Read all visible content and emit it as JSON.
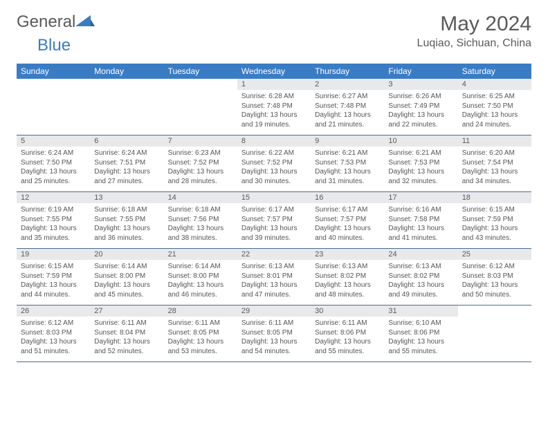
{
  "logo": {
    "part1": "General",
    "part2": "Blue"
  },
  "title": "May 2024",
  "subtitle": "Luqiao, Sichuan, China",
  "colors": {
    "header_bg": "#3a7cc4",
    "daynum_bg": "#e8e9eb",
    "text": "#5a5a5a",
    "rule": "#4a6a8a"
  },
  "day_labels": [
    "Sunday",
    "Monday",
    "Tuesday",
    "Wednesday",
    "Thursday",
    "Friday",
    "Saturday"
  ],
  "weeks": [
    {
      "nums": [
        "",
        "",
        "",
        "1",
        "2",
        "3",
        "4"
      ],
      "cells": [
        null,
        null,
        null,
        {
          "sr": "Sunrise: 6:28 AM",
          "ss": "Sunset: 7:48 PM",
          "d1": "Daylight: 13 hours",
          "d2": "and 19 minutes."
        },
        {
          "sr": "Sunrise: 6:27 AM",
          "ss": "Sunset: 7:48 PM",
          "d1": "Daylight: 13 hours",
          "d2": "and 21 minutes."
        },
        {
          "sr": "Sunrise: 6:26 AM",
          "ss": "Sunset: 7:49 PM",
          "d1": "Daylight: 13 hours",
          "d2": "and 22 minutes."
        },
        {
          "sr": "Sunrise: 6:25 AM",
          "ss": "Sunset: 7:50 PM",
          "d1": "Daylight: 13 hours",
          "d2": "and 24 minutes."
        }
      ]
    },
    {
      "nums": [
        "5",
        "6",
        "7",
        "8",
        "9",
        "10",
        "11"
      ],
      "cells": [
        {
          "sr": "Sunrise: 6:24 AM",
          "ss": "Sunset: 7:50 PM",
          "d1": "Daylight: 13 hours",
          "d2": "and 25 minutes."
        },
        {
          "sr": "Sunrise: 6:24 AM",
          "ss": "Sunset: 7:51 PM",
          "d1": "Daylight: 13 hours",
          "d2": "and 27 minutes."
        },
        {
          "sr": "Sunrise: 6:23 AM",
          "ss": "Sunset: 7:52 PM",
          "d1": "Daylight: 13 hours",
          "d2": "and 28 minutes."
        },
        {
          "sr": "Sunrise: 6:22 AM",
          "ss": "Sunset: 7:52 PM",
          "d1": "Daylight: 13 hours",
          "d2": "and 30 minutes."
        },
        {
          "sr": "Sunrise: 6:21 AM",
          "ss": "Sunset: 7:53 PM",
          "d1": "Daylight: 13 hours",
          "d2": "and 31 minutes."
        },
        {
          "sr": "Sunrise: 6:21 AM",
          "ss": "Sunset: 7:53 PM",
          "d1": "Daylight: 13 hours",
          "d2": "and 32 minutes."
        },
        {
          "sr": "Sunrise: 6:20 AM",
          "ss": "Sunset: 7:54 PM",
          "d1": "Daylight: 13 hours",
          "d2": "and 34 minutes."
        }
      ]
    },
    {
      "nums": [
        "12",
        "13",
        "14",
        "15",
        "16",
        "17",
        "18"
      ],
      "cells": [
        {
          "sr": "Sunrise: 6:19 AM",
          "ss": "Sunset: 7:55 PM",
          "d1": "Daylight: 13 hours",
          "d2": "and 35 minutes."
        },
        {
          "sr": "Sunrise: 6:18 AM",
          "ss": "Sunset: 7:55 PM",
          "d1": "Daylight: 13 hours",
          "d2": "and 36 minutes."
        },
        {
          "sr": "Sunrise: 6:18 AM",
          "ss": "Sunset: 7:56 PM",
          "d1": "Daylight: 13 hours",
          "d2": "and 38 minutes."
        },
        {
          "sr": "Sunrise: 6:17 AM",
          "ss": "Sunset: 7:57 PM",
          "d1": "Daylight: 13 hours",
          "d2": "and 39 minutes."
        },
        {
          "sr": "Sunrise: 6:17 AM",
          "ss": "Sunset: 7:57 PM",
          "d1": "Daylight: 13 hours",
          "d2": "and 40 minutes."
        },
        {
          "sr": "Sunrise: 6:16 AM",
          "ss": "Sunset: 7:58 PM",
          "d1": "Daylight: 13 hours",
          "d2": "and 41 minutes."
        },
        {
          "sr": "Sunrise: 6:15 AM",
          "ss": "Sunset: 7:59 PM",
          "d1": "Daylight: 13 hours",
          "d2": "and 43 minutes."
        }
      ]
    },
    {
      "nums": [
        "19",
        "20",
        "21",
        "22",
        "23",
        "24",
        "25"
      ],
      "cells": [
        {
          "sr": "Sunrise: 6:15 AM",
          "ss": "Sunset: 7:59 PM",
          "d1": "Daylight: 13 hours",
          "d2": "and 44 minutes."
        },
        {
          "sr": "Sunrise: 6:14 AM",
          "ss": "Sunset: 8:00 PM",
          "d1": "Daylight: 13 hours",
          "d2": "and 45 minutes."
        },
        {
          "sr": "Sunrise: 6:14 AM",
          "ss": "Sunset: 8:00 PM",
          "d1": "Daylight: 13 hours",
          "d2": "and 46 minutes."
        },
        {
          "sr": "Sunrise: 6:13 AM",
          "ss": "Sunset: 8:01 PM",
          "d1": "Daylight: 13 hours",
          "d2": "and 47 minutes."
        },
        {
          "sr": "Sunrise: 6:13 AM",
          "ss": "Sunset: 8:02 PM",
          "d1": "Daylight: 13 hours",
          "d2": "and 48 minutes."
        },
        {
          "sr": "Sunrise: 6:13 AM",
          "ss": "Sunset: 8:02 PM",
          "d1": "Daylight: 13 hours",
          "d2": "and 49 minutes."
        },
        {
          "sr": "Sunrise: 6:12 AM",
          "ss": "Sunset: 8:03 PM",
          "d1": "Daylight: 13 hours",
          "d2": "and 50 minutes."
        }
      ]
    },
    {
      "nums": [
        "26",
        "27",
        "28",
        "29",
        "30",
        "31",
        ""
      ],
      "cells": [
        {
          "sr": "Sunrise: 6:12 AM",
          "ss": "Sunset: 8:03 PM",
          "d1": "Daylight: 13 hours",
          "d2": "and 51 minutes."
        },
        {
          "sr": "Sunrise: 6:11 AM",
          "ss": "Sunset: 8:04 PM",
          "d1": "Daylight: 13 hours",
          "d2": "and 52 minutes."
        },
        {
          "sr": "Sunrise: 6:11 AM",
          "ss": "Sunset: 8:05 PM",
          "d1": "Daylight: 13 hours",
          "d2": "and 53 minutes."
        },
        {
          "sr": "Sunrise: 6:11 AM",
          "ss": "Sunset: 8:05 PM",
          "d1": "Daylight: 13 hours",
          "d2": "and 54 minutes."
        },
        {
          "sr": "Sunrise: 6:11 AM",
          "ss": "Sunset: 8:06 PM",
          "d1": "Daylight: 13 hours",
          "d2": "and 55 minutes."
        },
        {
          "sr": "Sunrise: 6:10 AM",
          "ss": "Sunset: 8:06 PM",
          "d1": "Daylight: 13 hours",
          "d2": "and 55 minutes."
        },
        null
      ]
    }
  ]
}
